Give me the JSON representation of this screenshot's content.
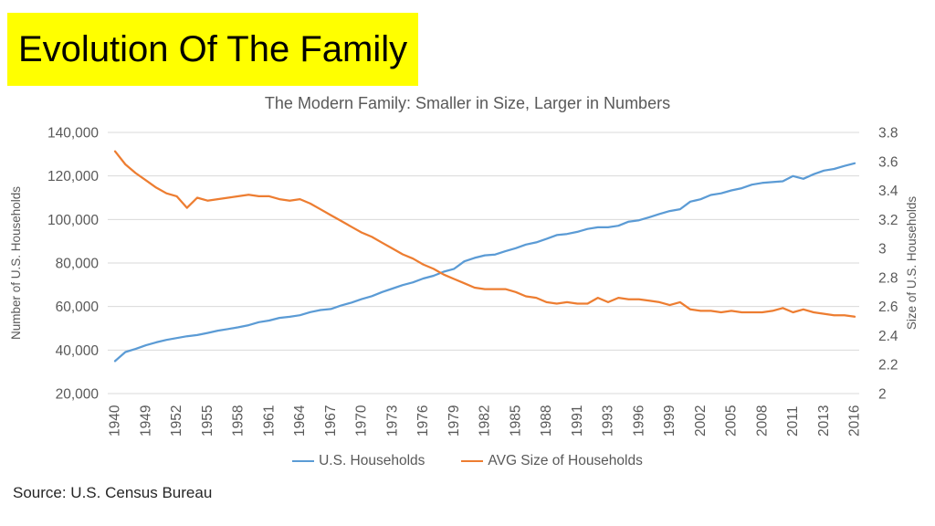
{
  "page": {
    "title": "Evolution Of The Family",
    "source": "Source: U.S. Census Bureau"
  },
  "colors": {
    "highlight": "#FFFF00",
    "title_text": "#000000",
    "chart_text": "#595959",
    "gridline": "#D9D9D9",
    "households_line": "#5B9BD5",
    "avg_size_line": "#ED7D31"
  },
  "chart_data": {
    "type": "line",
    "title": "The Modern Family: Smaller in Size, Larger in Numbers",
    "legend_position": "bottom",
    "grid": "horizontal",
    "y_left": {
      "label": "Number of U.S. Households",
      "unit": "thousands",
      "min": 20000,
      "max": 140000,
      "step": 20000,
      "tick_labels": [
        "20,000",
        "40,000",
        "60,000",
        "80,000",
        "100,000",
        "120,000",
        "140,000"
      ]
    },
    "y_right": {
      "label": "Size of U.S. Households",
      "min": 2,
      "max": 3.8,
      "step": 0.2,
      "tick_labels": [
        "2",
        "2.2",
        "2.4",
        "2.6",
        "2.8",
        "3",
        "3.2",
        "3.4",
        "3.6",
        "3.8"
      ]
    },
    "x_tick_every": 3,
    "x_tick_labels": [
      "1940",
      "1949",
      "1952",
      "1955",
      "1958",
      "1961",
      "1964",
      "1967",
      "1970",
      "1973",
      "1976",
      "1979",
      "1982",
      "1985",
      "1988",
      "1991",
      "1993",
      "1996",
      "1999",
      "2002",
      "2005",
      "2008",
      "2011",
      "2013",
      "2016"
    ],
    "categories": [
      "1940",
      "1947",
      "1948",
      "1949",
      "1950",
      "1951",
      "1952",
      "1953",
      "1954",
      "1955",
      "1956",
      "1957",
      "1958",
      "1959",
      "1960",
      "1961",
      "1962",
      "1963",
      "1964",
      "1965",
      "1966",
      "1967",
      "1968",
      "1969",
      "1970",
      "1971",
      "1972",
      "1973",
      "1974",
      "1975",
      "1976",
      "1977",
      "1978",
      "1979",
      "1980",
      "1981",
      "1982",
      "1983",
      "1984",
      "1985",
      "1986",
      "1987",
      "1988",
      "1989",
      "1990",
      "1991",
      "1992",
      "1993",
      "1993",
      "1994",
      "1995",
      "1996",
      "1997",
      "1998",
      "1999",
      "2000",
      "2001",
      "2002",
      "2003",
      "2004",
      "2005",
      "2006",
      "2007",
      "2008",
      "2009",
      "2010",
      "2011",
      "2012",
      "2013",
      "2013",
      "2014",
      "2015",
      "2016"
    ],
    "series": [
      {
        "name": "U.S. Households",
        "axis": "left",
        "color": "#5B9BD5",
        "values": [
          34949,
          39107,
          40532,
          42182,
          43554,
          44656,
          45504,
          46334,
          46893,
          47874,
          48902,
          49673,
          50474,
          51435,
          52799,
          53557,
          54764,
          55270,
          55996,
          57436,
          58406,
          58845,
          60444,
          61805,
          63401,
          64778,
          66676,
          68251,
          69859,
          71120,
          72867,
          74142,
          76030,
          77330,
          80776,
          82368,
          83527,
          83918,
          85407,
          86789,
          88458,
          89479,
          91066,
          92830,
          93347,
          94312,
          95669,
          96391,
          96426,
          97107,
          98990,
          99627,
          101018,
          102528,
          103874,
          104705,
          108209,
          109297,
          111278,
          112000,
          113343,
          114384,
          116011,
          116783,
          117181,
          117538,
          119927,
          118682,
          120773,
          122459,
          123229,
          124587,
          125819
        ]
      },
      {
        "name": "AVG Size of Households",
        "axis": "right",
        "color": "#ED7D31",
        "values": [
          3.67,
          3.58,
          3.52,
          3.47,
          3.42,
          3.38,
          3.36,
          3.28,
          3.35,
          3.33,
          3.34,
          3.35,
          3.36,
          3.37,
          3.36,
          3.36,
          3.34,
          3.33,
          3.34,
          3.31,
          3.27,
          3.23,
          3.19,
          3.15,
          3.11,
          3.08,
          3.04,
          3.0,
          2.96,
          2.93,
          2.89,
          2.86,
          2.82,
          2.79,
          2.76,
          2.73,
          2.72,
          2.72,
          2.72,
          2.7,
          2.67,
          2.66,
          2.63,
          2.62,
          2.63,
          2.62,
          2.62,
          2.66,
          2.63,
          2.66,
          2.65,
          2.65,
          2.64,
          2.63,
          2.61,
          2.63,
          2.58,
          2.57,
          2.57,
          2.56,
          2.57,
          2.56,
          2.56,
          2.56,
          2.57,
          2.59,
          2.56,
          2.58,
          2.56,
          2.55,
          2.54,
          2.54,
          2.53
        ]
      }
    ]
  }
}
